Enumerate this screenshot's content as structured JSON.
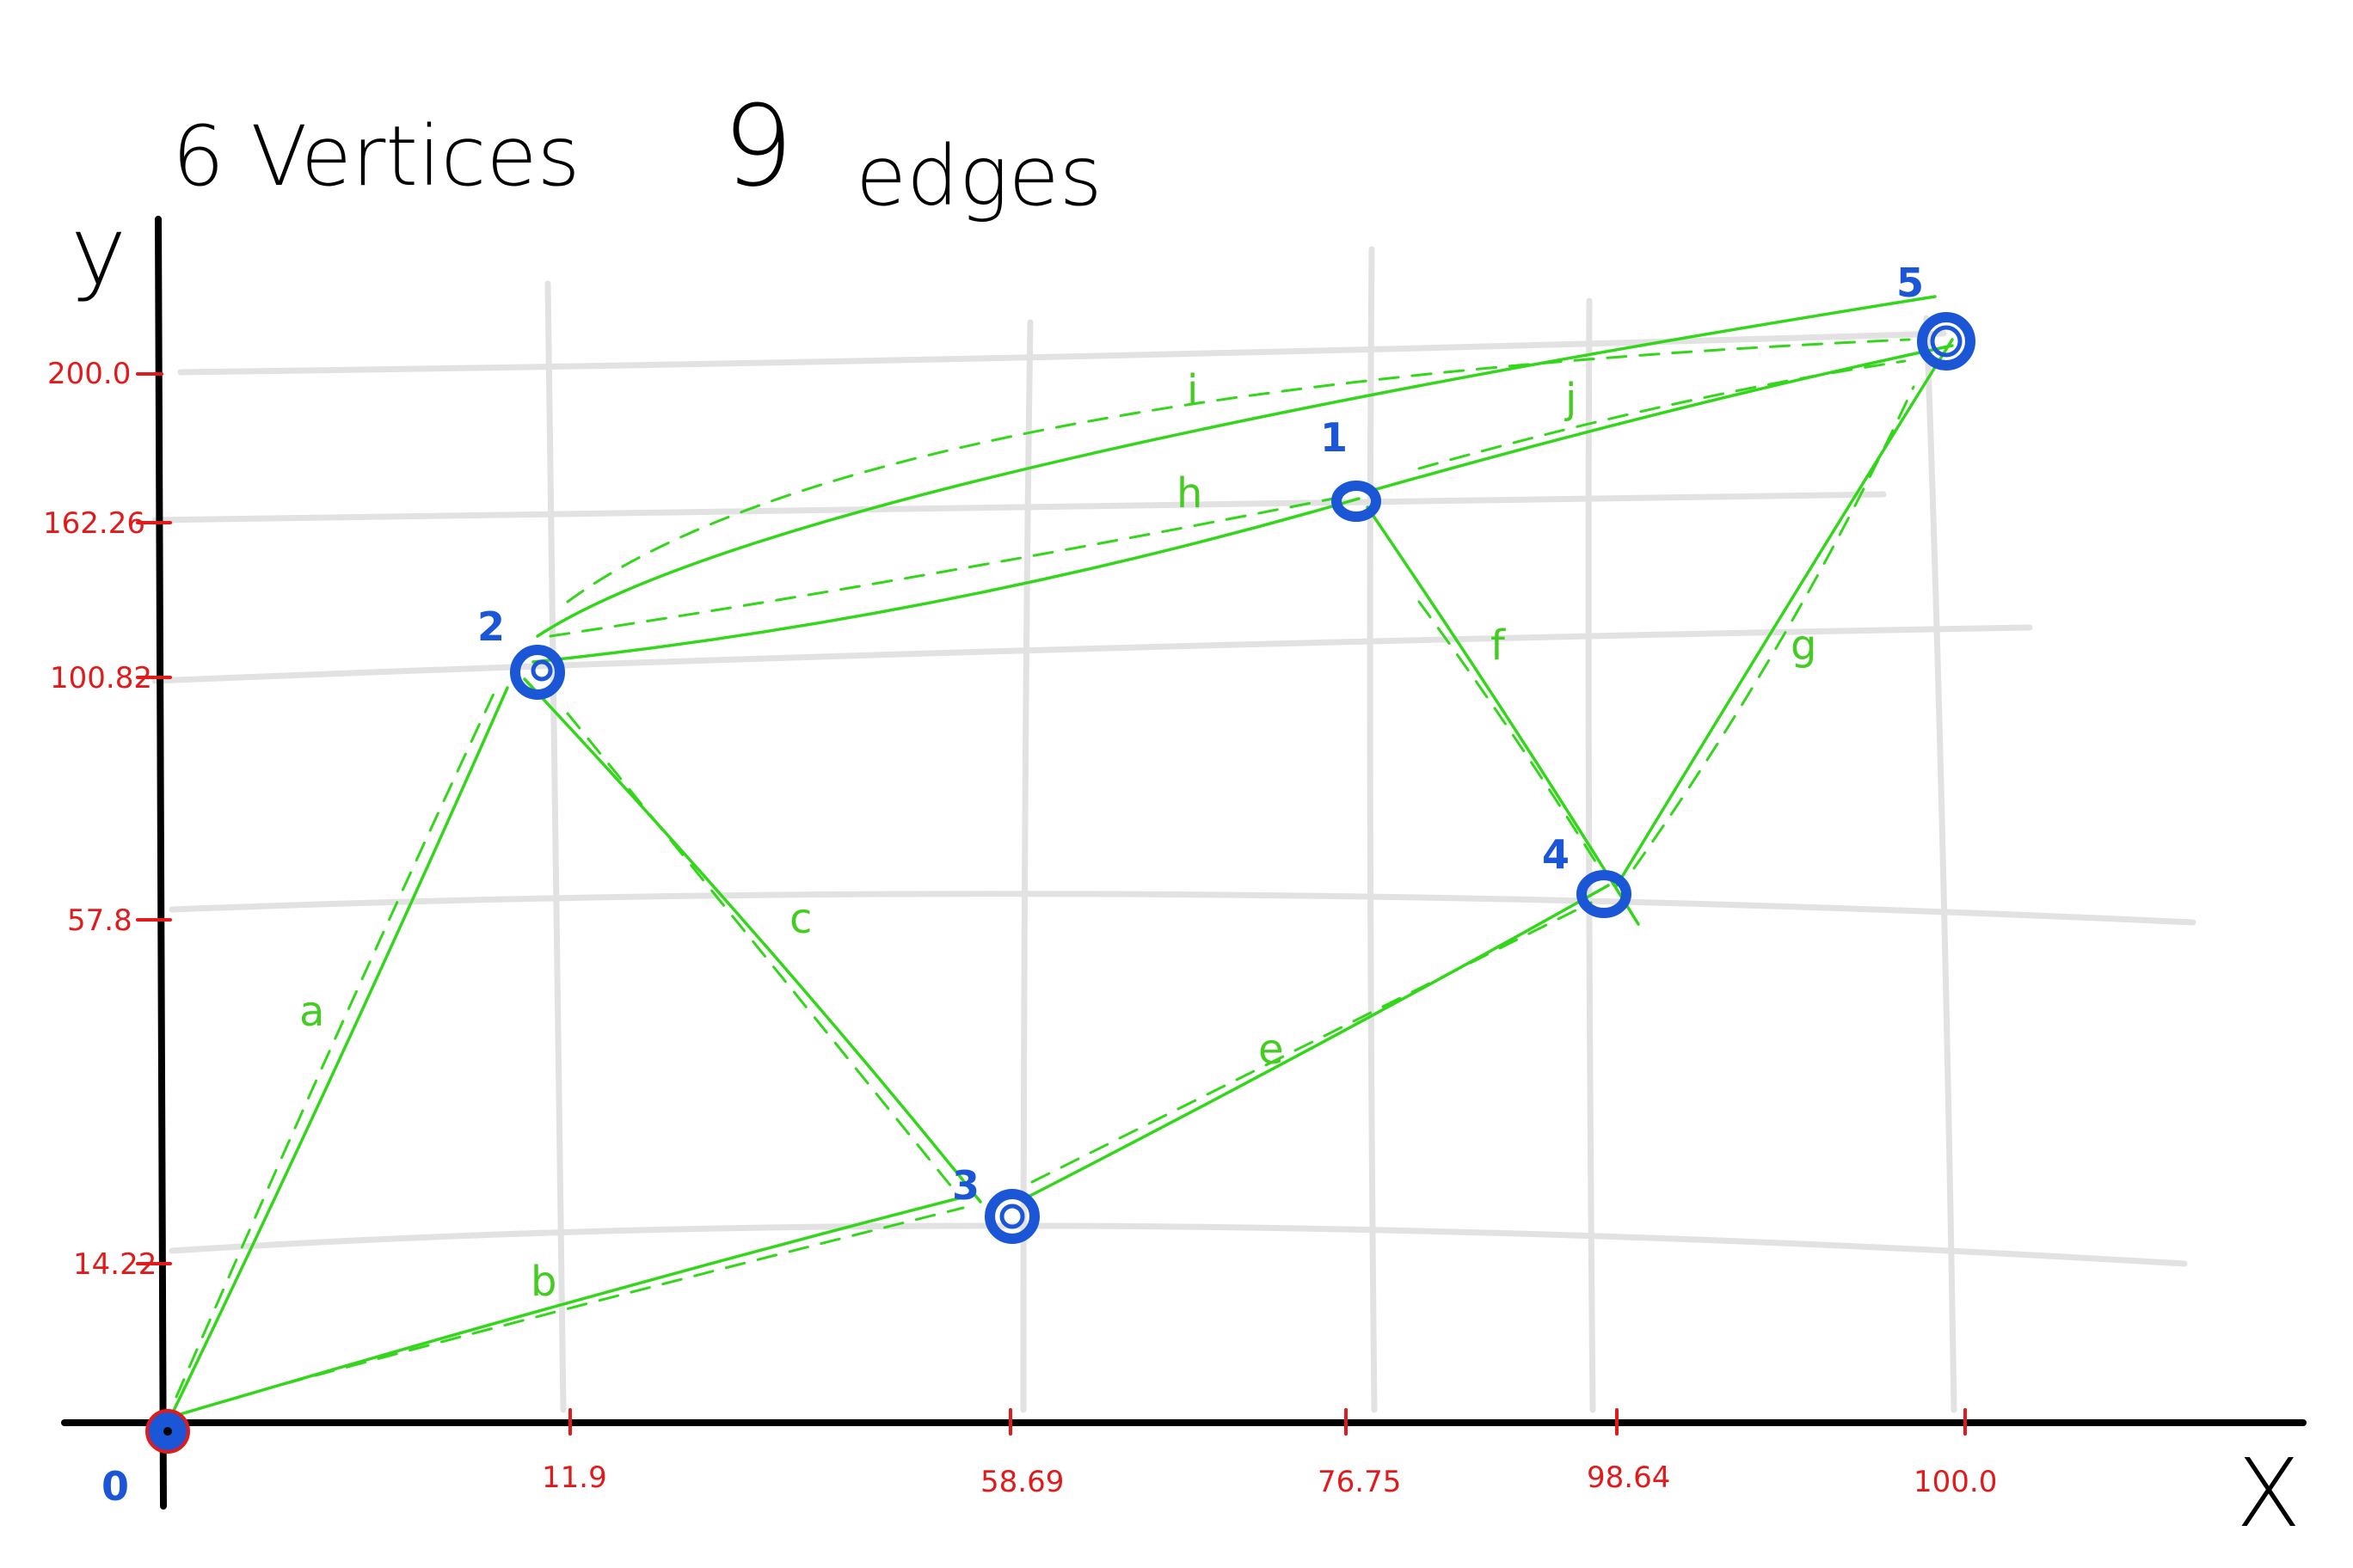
{
  "title": {
    "vertices": "6 Vertices",
    "edges_count": "9",
    "edges_word": "edges"
  },
  "axes": {
    "x_label": "X",
    "y_label": "y"
  },
  "x_ticks": [
    "11.9",
    "58.69",
    "76.75",
    "98.64",
    "100.0"
  ],
  "y_ticks": [
    "200.0",
    "162.26",
    "100.82",
    "57.8",
    "14.22"
  ],
  "vertices": [
    {
      "id": "0",
      "label": "0"
    },
    {
      "id": "1",
      "label": "1"
    },
    {
      "id": "2",
      "label": "2"
    },
    {
      "id": "3",
      "label": "3"
    },
    {
      "id": "4",
      "label": "4"
    },
    {
      "id": "5",
      "label": "5"
    }
  ],
  "edges": [
    {
      "label": "a",
      "from": "0",
      "to": "2"
    },
    {
      "label": "b",
      "from": "0",
      "to": "3"
    },
    {
      "label": "c",
      "from": "2",
      "to": "3"
    },
    {
      "label": "e",
      "from": "3",
      "to": "4"
    },
    {
      "label": "f",
      "from": "1",
      "to": "4"
    },
    {
      "label": "g",
      "from": "4",
      "to": "5"
    },
    {
      "label": "h",
      "from": "2",
      "to": "1"
    },
    {
      "label": "i",
      "from": "2",
      "to": "5"
    },
    {
      "label": "j",
      "from": "1",
      "to": "5"
    }
  ],
  "colors": {
    "axis": "#000000",
    "grid": "#e2e2e2",
    "tick_label": "#e11b1b",
    "vertex": "#1a56d6",
    "edge": "#33d61a"
  }
}
